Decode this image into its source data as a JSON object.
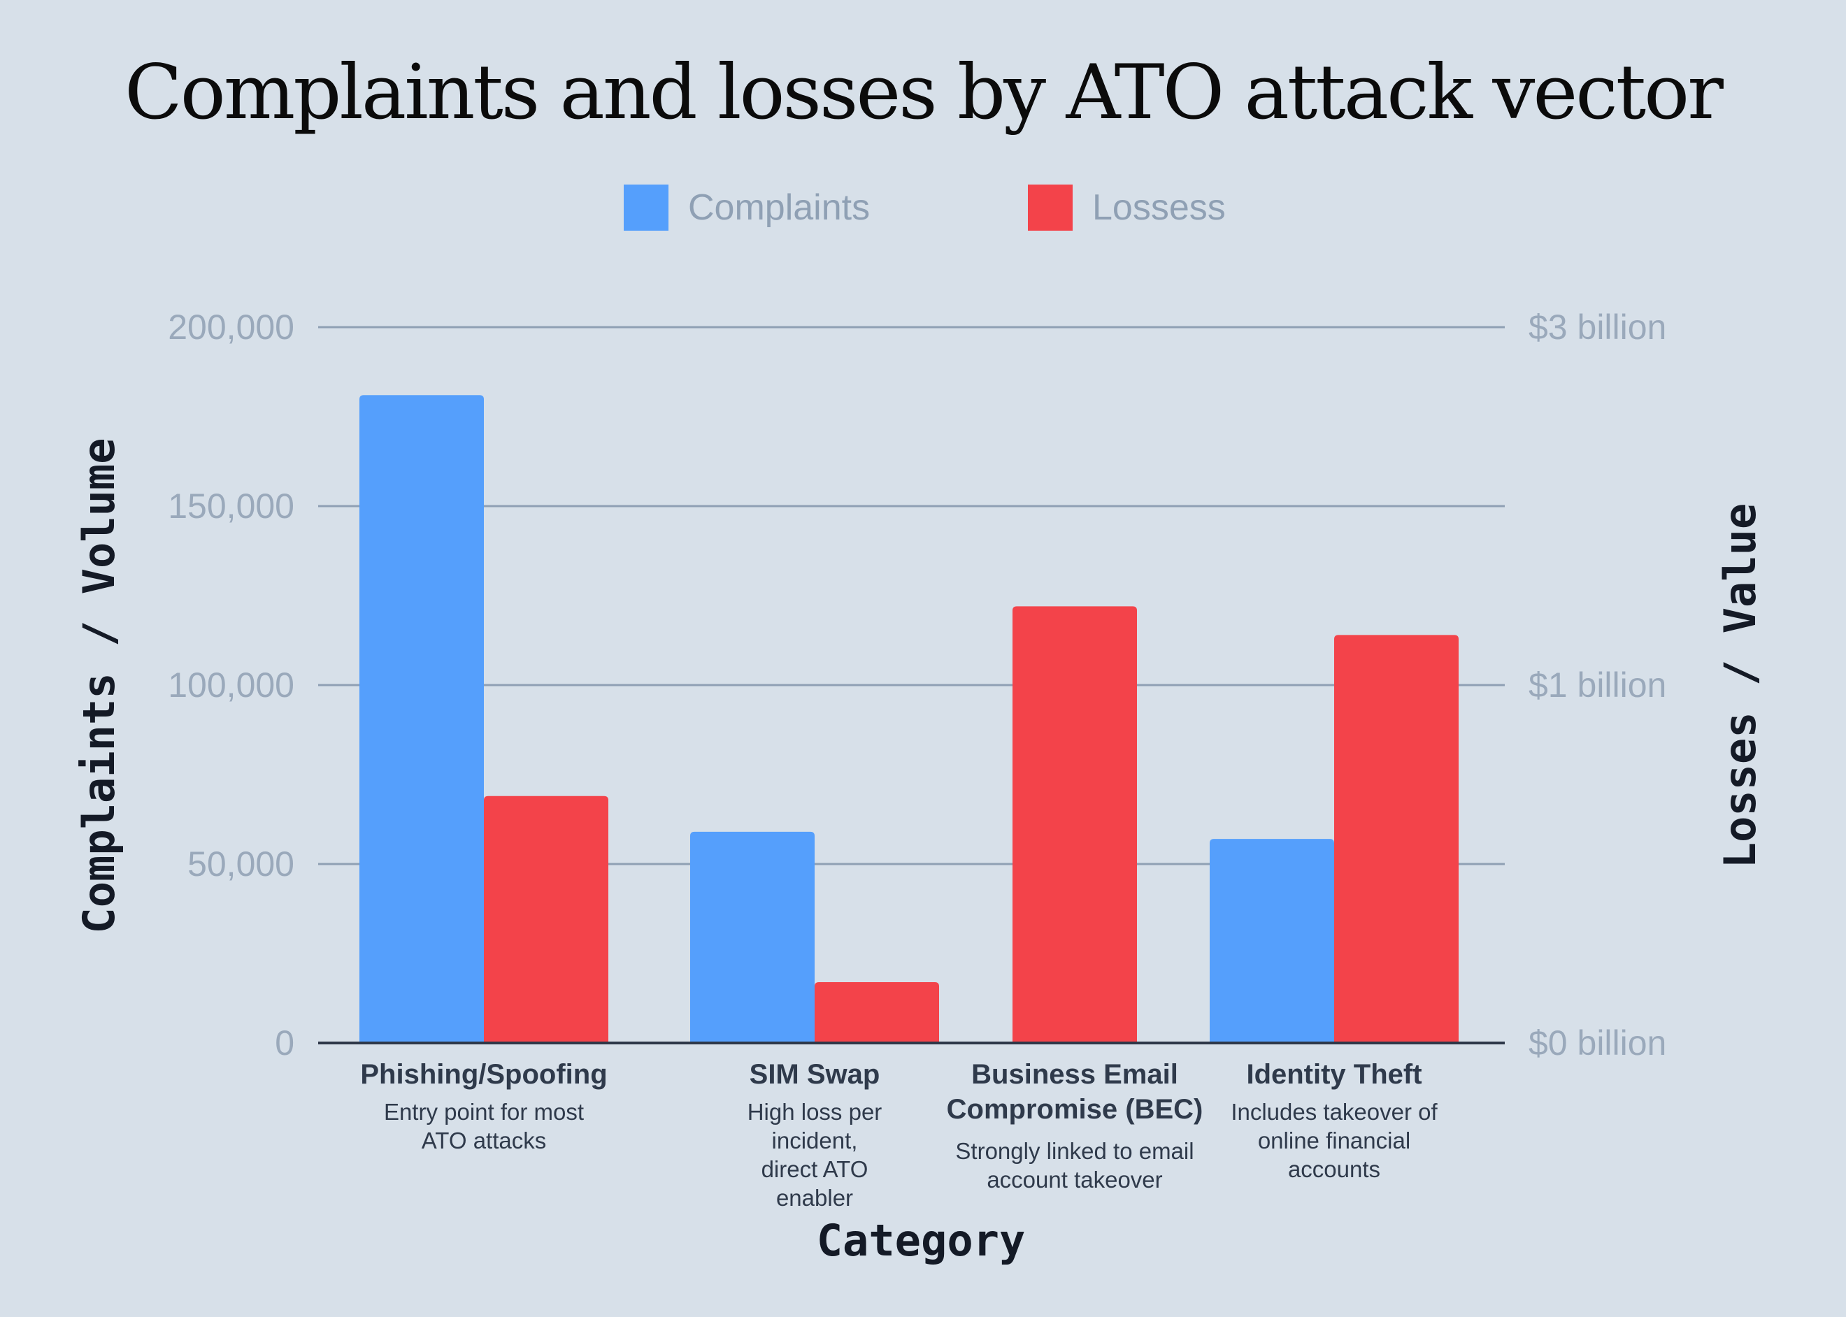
{
  "chart_data": {
    "type": "bar",
    "title": "Complaints and losses by ATO attack vector",
    "xlabel": "Category",
    "ylabel": "Complaints / Volume",
    "ylabel_right": "Losses / Value",
    "ylim": [
      0,
      200000
    ],
    "yticks": [
      {
        "value": 0,
        "label": "0"
      },
      {
        "value": 50000,
        "label": "50,000"
      },
      {
        "value": 100000,
        "label": "100,000"
      },
      {
        "value": 150000,
        "label": "150,000"
      },
      {
        "value": 200000,
        "label": "200,000"
      }
    ],
    "yticks_right": [
      {
        "value": 0,
        "label": "$0 billion"
      },
      {
        "value": 1,
        "label": "$1 billion"
      },
      {
        "value": 3,
        "label": "$3 billion"
      }
    ],
    "grid": true,
    "legend_placement": "top-center",
    "categories": [
      {
        "name": "Phishing/Spoofing",
        "note": "Entry point for most ATO attacks"
      },
      {
        "name": "SIM Swap",
        "note": "High loss per incident, direct ATO enabler"
      },
      {
        "name": "Business Email Compromise (BEC)",
        "note": "Strongly linked to email account takeover"
      },
      {
        "name": "Identity Theft",
        "note": "Includes takeover of online financial accounts"
      }
    ],
    "series": [
      {
        "name": "Complaints",
        "color": "#559ffc",
        "axis": "left",
        "values": [
          181000,
          59000,
          null,
          57000
        ]
      },
      {
        "name": "Lossess",
        "color": "#f3434a",
        "axis": "right",
        "unit": "billion USD",
        "values": [
          0.69,
          0.17,
          1.22,
          1.14
        ]
      }
    ]
  }
}
